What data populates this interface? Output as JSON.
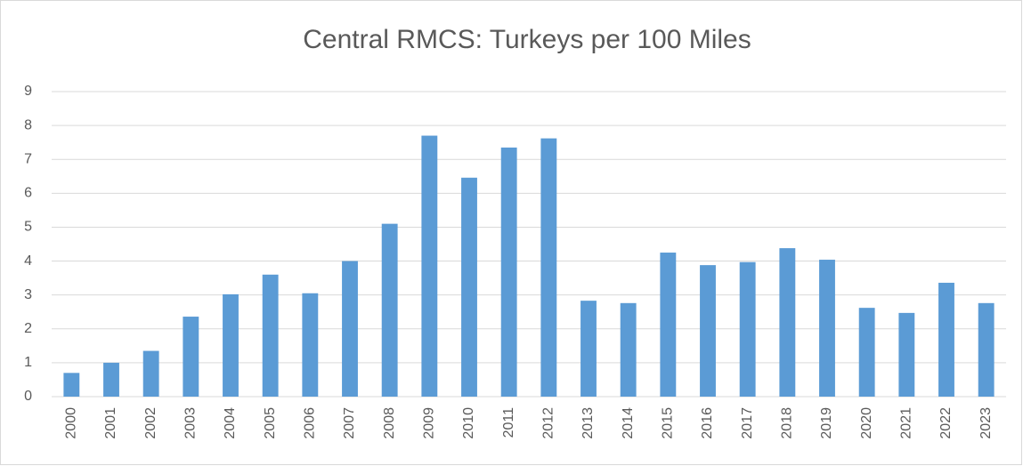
{
  "chart_data": {
    "type": "bar",
    "title": "Central RMCS:  Turkeys per 100 Miles",
    "categories": [
      "2000",
      "2001",
      "2002",
      "2003",
      "2004",
      "2005",
      "2006",
      "2007",
      "2008",
      "2009",
      "2010",
      "2011",
      "2012",
      "2013",
      "2014",
      "2015",
      "2016",
      "2017",
      "2018",
      "2019",
      "2020",
      "2021",
      "2022",
      "2023"
    ],
    "values": [
      0.7,
      1.0,
      1.35,
      2.36,
      3.02,
      3.6,
      3.05,
      4.0,
      5.1,
      7.7,
      6.46,
      7.35,
      7.62,
      2.83,
      2.76,
      4.25,
      3.88,
      3.97,
      4.38,
      4.04,
      2.62,
      2.47,
      3.36,
      2.76
    ],
    "color": "#5b9bd5",
    "ylim": [
      0,
      9
    ],
    "yticks": [
      0,
      1,
      2,
      3,
      4,
      5,
      6,
      7,
      8,
      9
    ],
    "grid": true
  }
}
